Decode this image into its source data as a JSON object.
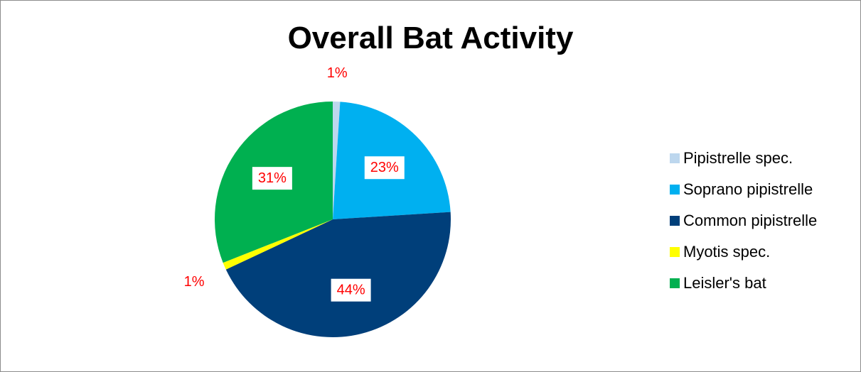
{
  "chart_data": {
    "type": "pie",
    "title": "Overall Bat Activity",
    "slices": [
      {
        "label": "Pipistrelle spec.",
        "value": 1,
        "display": "1%",
        "color": "#BDD7EE",
        "label_boxed": false
      },
      {
        "label": "Soprano pipistrelle",
        "value": 23,
        "display": "23%",
        "color": "#00B0F0",
        "label_boxed": true
      },
      {
        "label": "Common pipistrelle",
        "value": 44,
        "display": "44%",
        "color": "#003F7A",
        "label_boxed": true
      },
      {
        "label": "Myotis spec.",
        "value": 1,
        "display": "1%",
        "color": "#FFFF00",
        "label_boxed": false
      },
      {
        "label": "Leisler's bat",
        "value": 31,
        "display": "31%",
        "color": "#00B050",
        "label_boxed": true
      }
    ],
    "data_label_color": "#FF0000",
    "legend_position": "right"
  }
}
